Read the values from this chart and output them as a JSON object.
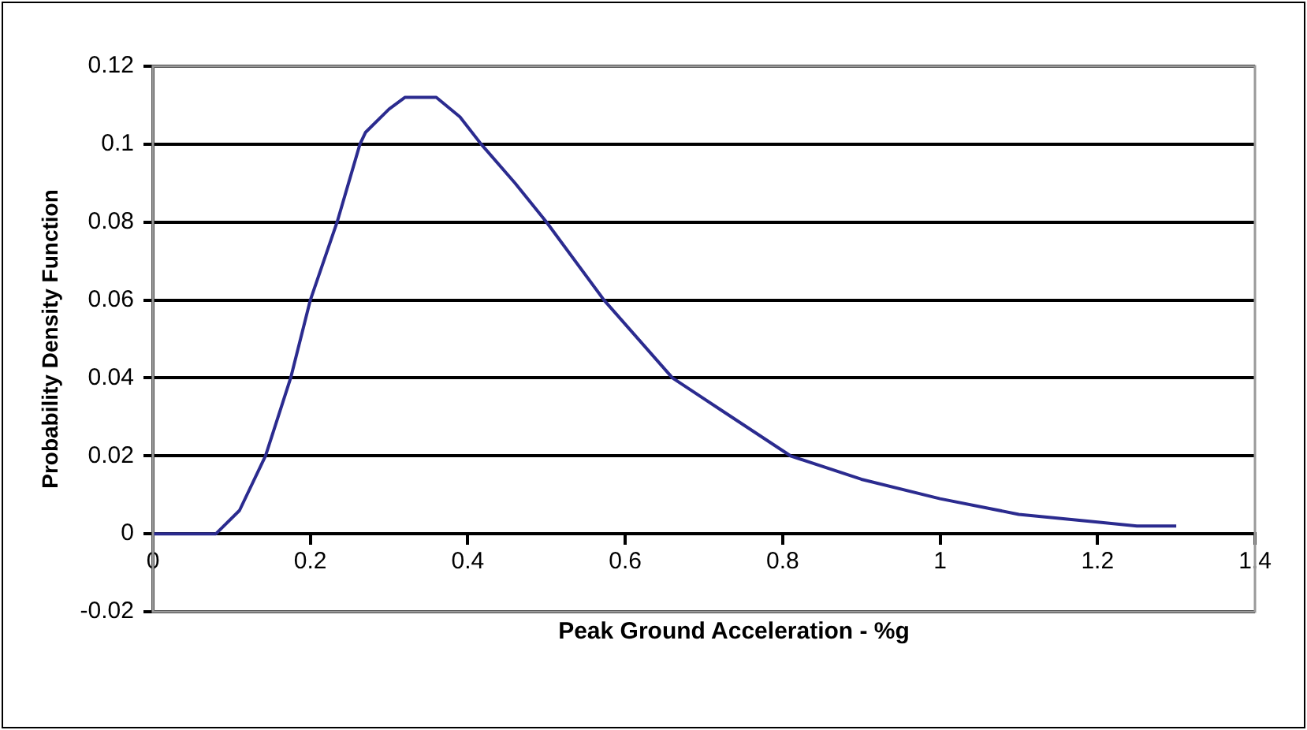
{
  "chart_data": {
    "type": "line",
    "xlabel": "Peak Ground Acceleration - %g",
    "ylabel": "Probability Density Function",
    "x": [
      0,
      0.08,
      0.11,
      0.143,
      0.175,
      0.2,
      0.234,
      0.263,
      0.27,
      0.3,
      0.32,
      0.36,
      0.39,
      0.417,
      0.46,
      0.5,
      0.573,
      0.66,
      0.72,
      0.81,
      0.9,
      1.0,
      1.1,
      1.2,
      1.25,
      1.3
    ],
    "series": [
      {
        "color": "#2b2b8f",
        "values": [
          0,
          0,
          0.006,
          0.02,
          0.04,
          0.06,
          0.08,
          0.1,
          0.103,
          0.109,
          0.112,
          0.112,
          0.107,
          0.1,
          0.09,
          0.08,
          0.06,
          0.04,
          0.032,
          0.02,
          0.014,
          0.009,
          0.005,
          0.003,
          0.002,
          0.002
        ]
      }
    ],
    "xlim": [
      0,
      1.4
    ],
    "xticks": [
      0,
      0.2,
      0.4,
      0.6,
      0.8,
      1,
      1.2,
      1.4
    ],
    "ylim": [
      -0.02,
      0.12
    ],
    "yticks": [
      -0.02,
      0,
      0.02,
      0.04,
      0.06,
      0.08,
      0.1,
      0.12
    ],
    "grid": "y",
    "legend": false,
    "marker": "none",
    "line_style": "solid"
  }
}
